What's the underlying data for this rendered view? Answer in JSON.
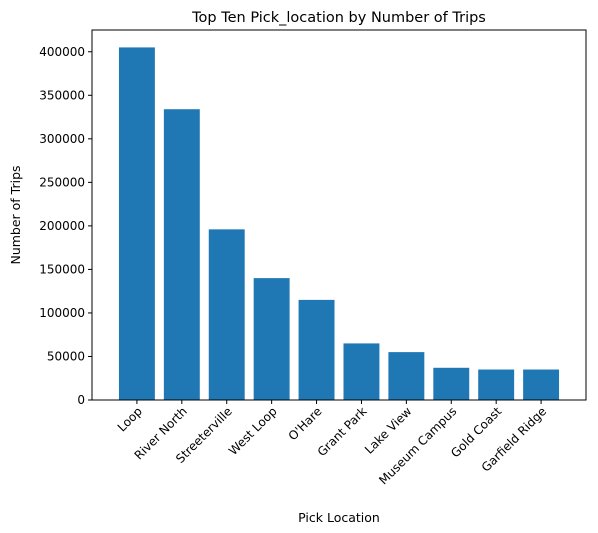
{
  "chart_data": {
    "type": "bar",
    "title": "Top Ten Pick_location by Number of Trips",
    "xlabel": "Pick Location",
    "ylabel": "Number of Trips",
    "categories": [
      "Loop",
      "River North",
      "Streeterville",
      "West Loop",
      "O'Hare",
      "Grant Park",
      "Lake View",
      "Museum Campus",
      "Gold Coast",
      "Garfield Ridge"
    ],
    "values": [
      405000,
      334000,
      196000,
      140000,
      115000,
      65000,
      55000,
      37000,
      35000,
      35000
    ],
    "ylim": [
      0,
      425000
    ],
    "yticks": [
      0,
      50000,
      100000,
      150000,
      200000,
      250000,
      300000,
      350000,
      400000
    ],
    "grid": false,
    "bar_color": "#1f77b4"
  }
}
